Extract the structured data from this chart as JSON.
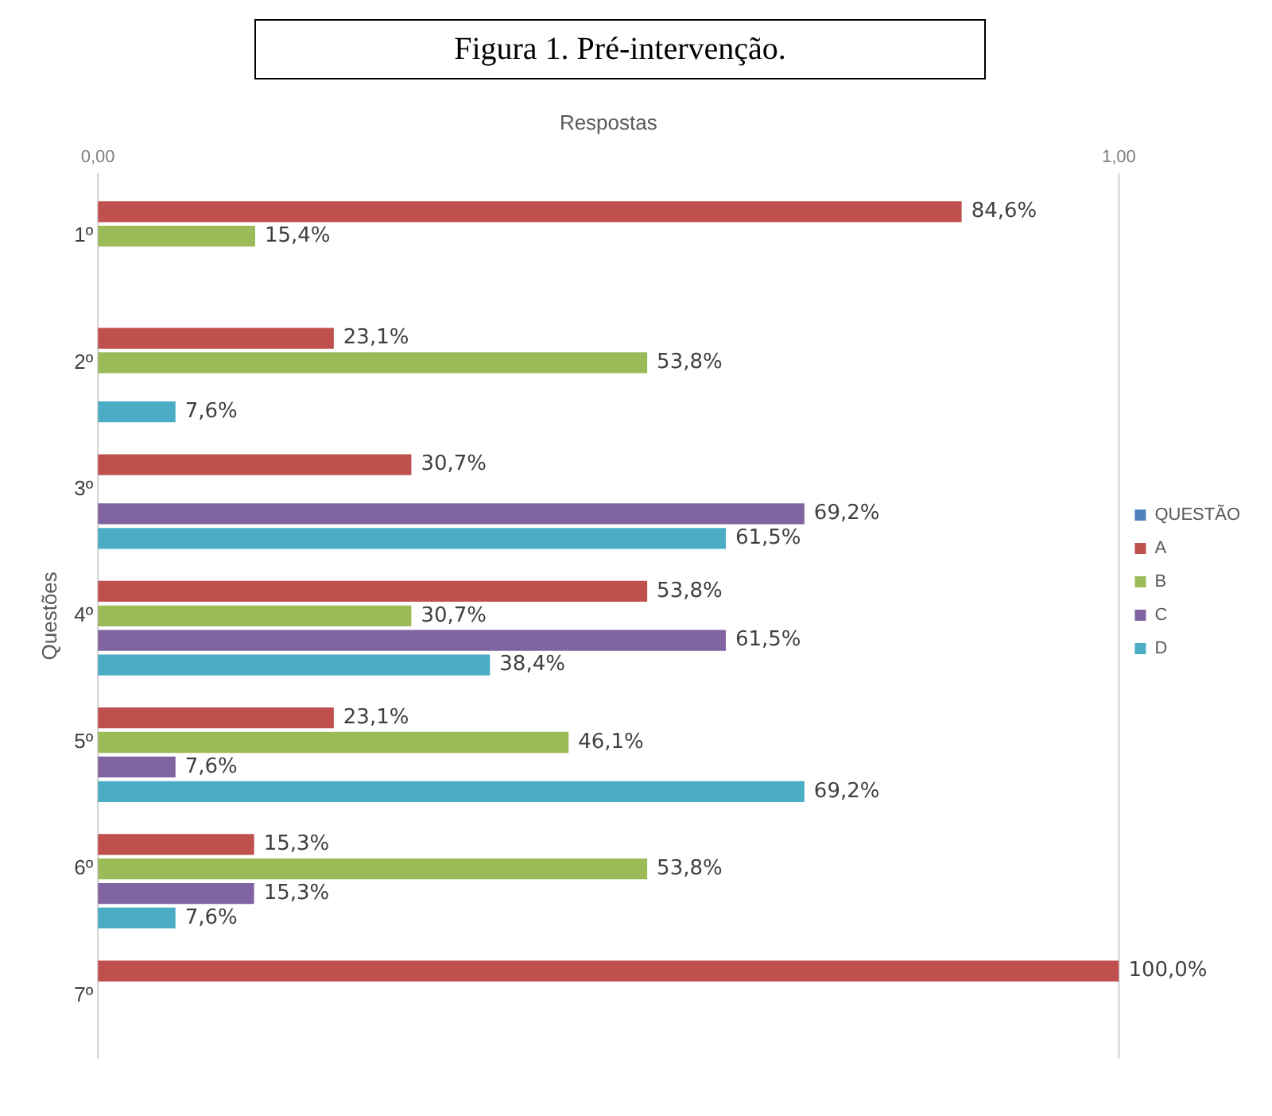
{
  "chart_data": {
    "type": "bar",
    "orientation": "horizontal",
    "title": "Figura 1. Pré-intervenção.",
    "xlabel": "Respostas",
    "ylabel": "Questões",
    "categories": [
      "1º",
      "2º",
      "3º",
      "4º",
      "5º",
      "6º",
      "7º"
    ],
    "xlim": [
      0,
      1
    ],
    "xticks": [
      {
        "value": 0,
        "label": "0,00"
      },
      {
        "value": 1,
        "label": "1,00"
      }
    ],
    "legend": "right",
    "series": [
      {
        "name": "QUESTÃO",
        "color": "#4f81bd",
        "values": [
          null,
          null,
          null,
          null,
          null,
          null,
          null
        ]
      },
      {
        "name": "A",
        "color": "#c0504d",
        "values": [
          0.846,
          0.231,
          0.307,
          0.538,
          0.231,
          0.153,
          1.0
        ],
        "value_labels": [
          "84,6%",
          "23,1%",
          "30,7%",
          "53,8%",
          "23,1%",
          "15,3%",
          "100,0%"
        ]
      },
      {
        "name": "B",
        "color": "#9bbb59",
        "values": [
          0.154,
          0.538,
          null,
          0.307,
          0.461,
          0.538,
          null
        ],
        "value_labels": [
          "15,4%",
          "53,8%",
          null,
          "30,7%",
          "46,1%",
          "53,8%",
          null
        ]
      },
      {
        "name": "C",
        "color": "#8064a2",
        "values": [
          null,
          null,
          0.692,
          0.615,
          0.076,
          0.153,
          null
        ],
        "value_labels": [
          null,
          null,
          "69,2%",
          "61,5%",
          "7,6%",
          "15,3%",
          null
        ]
      },
      {
        "name": "D",
        "color": "#4bacc6",
        "values": [
          null,
          0.076,
          0.615,
          0.384,
          0.692,
          0.076,
          null
        ],
        "value_labels": [
          null,
          "7,6%",
          "61,5%",
          "38,4%",
          "69,2%",
          "7,6%",
          null
        ]
      }
    ]
  }
}
